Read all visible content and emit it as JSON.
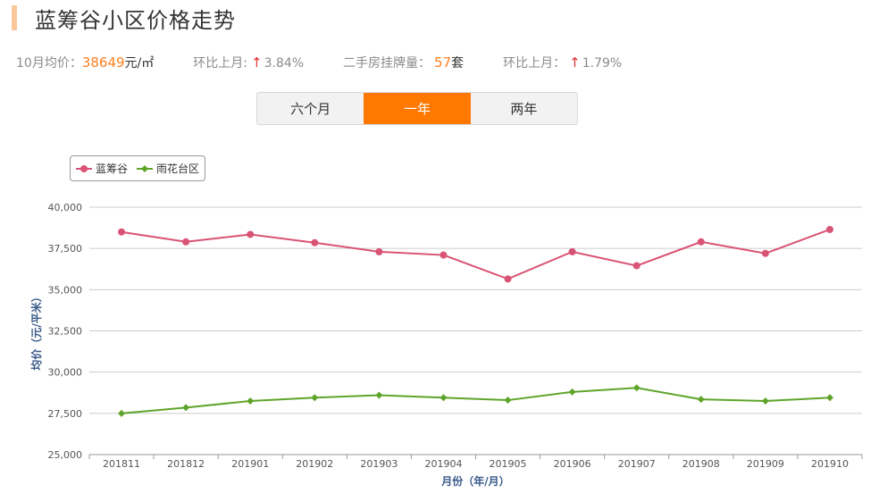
{
  "header": {
    "title": "蓝筹谷小区价格走势"
  },
  "stats": {
    "avg_label": "10月均价：",
    "avg_value": "38649",
    "avg_unit": "元/㎡",
    "mom_label": "环比上月:",
    "mom_value": "3.84%",
    "listing_label": "二手房挂牌量：",
    "listing_value": "57",
    "listing_unit": "套",
    "listing_mom_label": "环比上月：",
    "listing_mom_value": "1.79%",
    "arrow": "↑"
  },
  "tabs": [
    {
      "label": "六个月",
      "active": false
    },
    {
      "label": "一年",
      "active": true
    },
    {
      "label": "两年",
      "active": false
    }
  ],
  "colors": {
    "accent": "#ff7800",
    "series1": "#d95374",
    "series2": "#5ea42a"
  },
  "chart_data": {
    "type": "line",
    "title": "",
    "xlabel": "月份（年/月）",
    "ylabel": "均价（元/平米）",
    "ylim": [
      25000,
      40000
    ],
    "yticks": [
      25000,
      27500,
      30000,
      32500,
      35000,
      37500,
      40000
    ],
    "ytick_labels": [
      "25,000",
      "27,500",
      "30,000",
      "32,500",
      "35,000",
      "37,500",
      "40,000"
    ],
    "categories": [
      "201811",
      "201812",
      "201901",
      "201902",
      "201903",
      "201904",
      "201905",
      "201906",
      "201907",
      "201908",
      "201909",
      "201910"
    ],
    "legend_position": "top-left",
    "grid": true,
    "series": [
      {
        "name": "蓝筹谷",
        "marker": "circle",
        "values": [
          38500,
          37900,
          38350,
          37850,
          37300,
          37100,
          35650,
          37300,
          36450,
          37900,
          37200,
          38649
        ]
      },
      {
        "name": "雨花台区",
        "marker": "diamond",
        "values": [
          27500,
          27850,
          28250,
          28450,
          28600,
          28450,
          28300,
          28800,
          29050,
          28350,
          28250,
          28450
        ]
      }
    ]
  }
}
